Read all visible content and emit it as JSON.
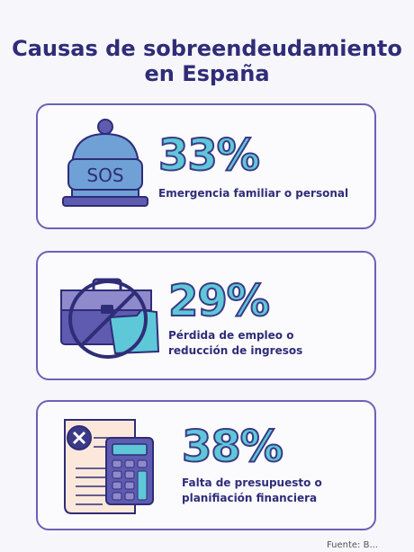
{
  "title_line1": "Causas de sobreendeudamiento",
  "title_line2": "en España",
  "chart_data": {
    "type": "table",
    "categories": [
      "Emergencia familiar o personal",
      "Pérdida de empleo o reducción de ingresos",
      "Falta de presupuesto o planifiación financiera"
    ],
    "values": [
      33,
      29,
      38
    ],
    "labels": [
      "33%",
      "29%",
      "38%"
    ]
  },
  "cards": [
    {
      "percent": "33%",
      "desc_line1": "Emergencia familiar o personal",
      "desc_line2": "",
      "icon": "sos-bell-icon",
      "icon_text": "SOS"
    },
    {
      "percent": "29%",
      "desc_line1": "Pérdida de empleo o",
      "desc_line2": "reducción de ingresos",
      "icon": "no-briefcase-icon"
    },
    {
      "percent": "38%",
      "desc_line1": "Falta de presupuesto o",
      "desc_line2": "planifiación financiera",
      "icon": "bill-calculator-icon"
    }
  ],
  "source": "Fuente: B...",
  "colors": {
    "accent": "#5ec8d8",
    "primary": "#2f2d78",
    "border": "#6a63b4",
    "violet": "#5f5bb0"
  }
}
